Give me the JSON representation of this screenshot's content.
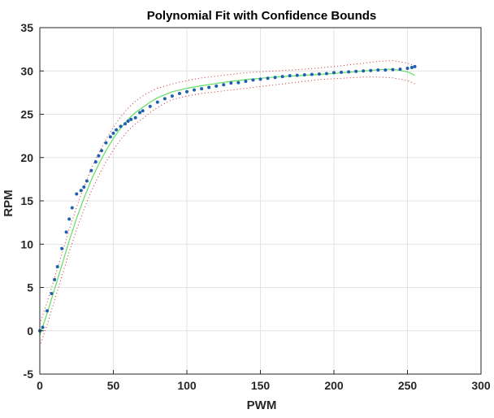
{
  "chart_data": {
    "type": "scatter",
    "title": "Polynomial Fit with Confidence Bounds",
    "xlabel": "PWM",
    "ylabel": "RPM",
    "xlim": [
      0,
      300
    ],
    "ylim": [
      -5,
      35
    ],
    "xticks": [
      "0",
      "50",
      "100",
      "150",
      "200",
      "250",
      "300"
    ],
    "yticks": [
      "-5",
      "0",
      "5",
      "10",
      "15",
      "20",
      "25",
      "30",
      "35"
    ],
    "grid": true,
    "colors": {
      "data": "#1f5fb0",
      "fit": "#5fe05f",
      "bounds": "#cc2a2a",
      "grid": "#e3e3e3",
      "axes": "#262626"
    },
    "series": [
      {
        "style": "dots",
        "x": [
          0,
          2,
          5,
          8,
          10,
          12,
          15,
          18,
          20,
          22,
          25,
          28,
          30,
          32,
          35,
          38,
          40,
          42,
          45,
          48,
          50,
          52,
          55,
          58,
          60,
          62,
          65,
          68,
          70,
          75,
          80,
          85,
          90,
          95,
          100,
          105,
          110,
          115,
          120,
          125,
          130,
          135,
          140,
          145,
          150,
          155,
          160,
          165,
          170,
          175,
          180,
          185,
          190,
          195,
          200,
          205,
          210,
          215,
          220,
          225,
          230,
          235,
          240,
          245,
          250,
          253,
          255
        ],
        "y": [
          0,
          0.4,
          2.3,
          4.3,
          5.9,
          7.4,
          9.5,
          11.4,
          12.9,
          14.2,
          15.8,
          16.2,
          16.6,
          17.3,
          18.5,
          19.5,
          20.2,
          20.8,
          21.7,
          22.4,
          22.8,
          23.2,
          23.6,
          23.9,
          24.2,
          24.4,
          24.6,
          25.2,
          25.4,
          25.9,
          26.4,
          26.8,
          27.1,
          27.4,
          27.6,
          27.8,
          27.95,
          28.1,
          28.25,
          28.4,
          28.6,
          28.65,
          28.8,
          28.95,
          29.05,
          29.15,
          29.25,
          29.35,
          29.45,
          29.5,
          29.55,
          29.6,
          29.65,
          29.7,
          29.8,
          29.85,
          29.9,
          29.95,
          30.0,
          30.05,
          30.1,
          30.1,
          30.15,
          30.2,
          30.3,
          30.4,
          30.5
        ]
      },
      {
        "style": "line",
        "x": [
          0,
          5,
          10,
          15,
          20,
          25,
          30,
          35,
          40,
          45,
          50,
          55,
          60,
          65,
          70,
          75,
          80,
          90,
          100,
          110,
          120,
          130,
          140,
          150,
          160,
          170,
          180,
          190,
          200,
          210,
          220,
          230,
          240,
          250,
          255
        ],
        "y": [
          -0.5,
          2.0,
          4.8,
          7.6,
          10.4,
          13.0,
          15.3,
          17.4,
          19.2,
          20.8,
          22.2,
          23.4,
          24.4,
          25.2,
          25.8,
          26.4,
          26.9,
          27.6,
          28.0,
          28.3,
          28.55,
          28.8,
          29.0,
          29.15,
          29.3,
          29.4,
          29.5,
          29.6,
          29.7,
          29.85,
          30.0,
          30.15,
          30.2,
          29.9,
          29.5
        ]
      },
      {
        "style": "dotted",
        "x": [
          0,
          5,
          10,
          15,
          20,
          25,
          30,
          35,
          40,
          45,
          50,
          55,
          60,
          65,
          70,
          75,
          80,
          90,
          100,
          110,
          120,
          130,
          140,
          150,
          160,
          170,
          180,
          190,
          200,
          210,
          220,
          230,
          240,
          250,
          255
        ],
        "y": [
          0.8,
          3.3,
          6.1,
          8.9,
          11.7,
          14.3,
          16.6,
          18.7,
          20.5,
          22.1,
          23.5,
          24.7,
          25.7,
          26.5,
          27.1,
          27.6,
          28.0,
          28.5,
          28.9,
          29.2,
          29.4,
          29.6,
          29.8,
          29.9,
          30.0,
          30.1,
          30.2,
          30.35,
          30.5,
          30.7,
          30.9,
          31.1,
          31.2,
          30.9,
          30.6
        ]
      },
      {
        "style": "dotted",
        "x": [
          0,
          5,
          10,
          15,
          20,
          25,
          30,
          35,
          40,
          45,
          50,
          55,
          60,
          65,
          70,
          75,
          80,
          90,
          100,
          110,
          120,
          130,
          140,
          150,
          160,
          170,
          180,
          190,
          200,
          210,
          220,
          230,
          240,
          250,
          255
        ],
        "y": [
          -1.8,
          0.7,
          3.5,
          6.3,
          9.1,
          11.7,
          14.0,
          16.1,
          17.9,
          19.5,
          20.9,
          22.1,
          23.1,
          23.9,
          24.5,
          25.2,
          25.8,
          26.7,
          27.1,
          27.4,
          27.6,
          27.8,
          28.0,
          28.2,
          28.4,
          28.6,
          28.8,
          29.0,
          29.1,
          29.2,
          29.3,
          29.3,
          29.2,
          28.9,
          28.5
        ]
      }
    ]
  }
}
